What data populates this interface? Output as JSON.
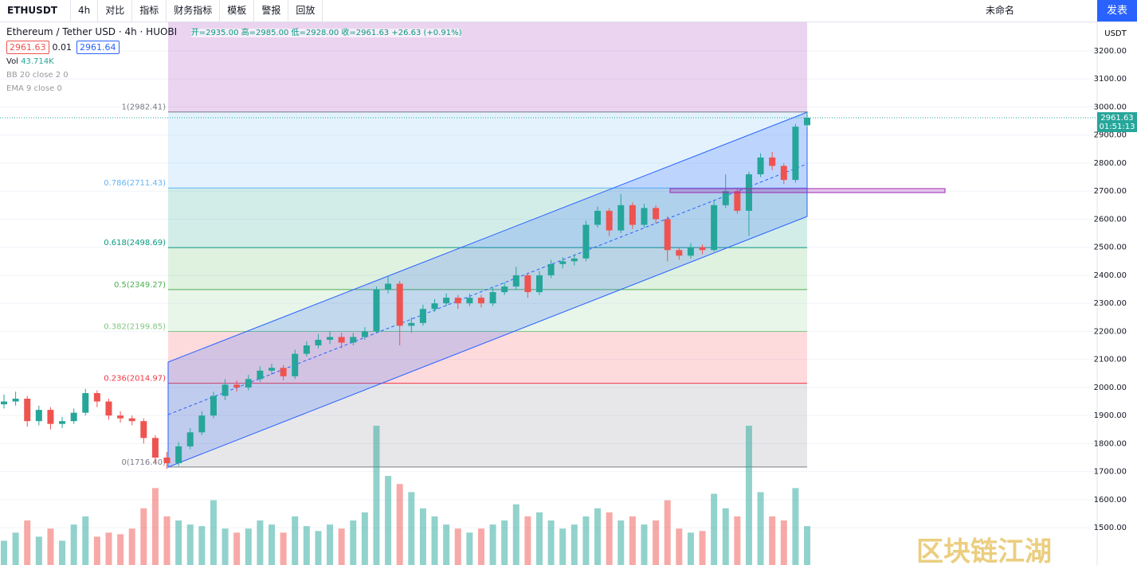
{
  "toolbar": {
    "symbol": "ETHUSDT",
    "interval": "4h",
    "items": [
      "对比",
      "指标",
      "财务指标",
      "模板",
      "警报",
      "回放"
    ],
    "layout_name": "未命名",
    "publish": "发表"
  },
  "legend": {
    "title": "Ethereum / Tether USD · 4h · HUOBI",
    "ohlc": "开=2935.00 高=2985.00 低=2928.00 收=2961.63 +26.63 (+0.91%)",
    "bid": "2961.63",
    "spread": "0.01",
    "ask": "2961.64",
    "vol_label": "Vol",
    "vol_value": "43.714K",
    "indicators": [
      "BB 20 close 2 0",
      "EMA 9 close 0"
    ]
  },
  "price_axis": {
    "currency": "USDT",
    "last_price": "2961.63",
    "countdown": "01:51:13"
  },
  "watermark": "区块链江湖",
  "chart_data": {
    "type": "candlestick",
    "ylim": [
      1367,
      3305
    ],
    "yticks": [
      {
        "value": 1500,
        "label": "1500.00"
      },
      {
        "value": 1600,
        "label": "1600.00"
      },
      {
        "value": 1700,
        "label": "1700.00"
      },
      {
        "value": 1800,
        "label": "1800.00"
      },
      {
        "value": 1900,
        "label": "1900.00"
      },
      {
        "value": 2000,
        "label": "2000.00"
      },
      {
        "value": 2100,
        "label": "2100.00"
      },
      {
        "value": 2200,
        "label": "2200.00"
      },
      {
        "value": 2300,
        "label": "2300.00"
      },
      {
        "value": 2400,
        "label": "2400.00"
      },
      {
        "value": 2500,
        "label": "2500.00"
      },
      {
        "value": 2600,
        "label": "2600.00"
      },
      {
        "value": 2700,
        "label": "2700.00"
      },
      {
        "value": 2800,
        "label": "2800.00"
      },
      {
        "value": 2900,
        "label": "2900.00"
      },
      {
        "value": 3000,
        "label": "3000.00"
      },
      {
        "value": 3100,
        "label": "3100.00"
      },
      {
        "value": 3200,
        "label": "3200.00"
      }
    ],
    "grid": true,
    "up_color": "#26a69a",
    "down_color": "#ef5350",
    "fib_levels": [
      {
        "value": 1716.4,
        "label": "0(1716.40)",
        "color": "#787b86"
      },
      {
        "value": 2014.97,
        "label": "0.236(2014.97)",
        "color": "#f23645"
      },
      {
        "value": 2199.85,
        "label": "0.382(2199.85)",
        "color": "#81c784"
      },
      {
        "value": 2349.27,
        "label": "0.5(2349.27)",
        "color": "#4caf50"
      },
      {
        "value": 2498.69,
        "label": "0.618(2498.69)",
        "color": "#089981"
      },
      {
        "value": 2711.43,
        "label": "0.786(2711.43)",
        "color": "#64b5f6"
      },
      {
        "value": 2982.41,
        "label": "1(2982.41)",
        "color": "#787b86"
      }
    ],
    "candles": [
      [
        1940,
        1975,
        1925,
        1950
      ],
      [
        1950,
        1985,
        1935,
        1960
      ],
      [
        1960,
        1970,
        1860,
        1880
      ],
      [
        1880,
        1935,
        1865,
        1920
      ],
      [
        1920,
        1930,
        1850,
        1870
      ],
      [
        1870,
        1895,
        1855,
        1880
      ],
      [
        1880,
        1925,
        1870,
        1910
      ],
      [
        1910,
        1995,
        1900,
        1980
      ],
      [
        1980,
        1990,
        1930,
        1950
      ],
      [
        1950,
        1960,
        1885,
        1900
      ],
      [
        1900,
        1915,
        1875,
        1890
      ],
      [
        1890,
        1900,
        1865,
        1880
      ],
      [
        1880,
        1890,
        1800,
        1820
      ],
      [
        1820,
        1830,
        1730,
        1750
      ],
      [
        1750,
        1770,
        1710,
        1730
      ],
      [
        1730,
        1805,
        1720,
        1790
      ],
      [
        1790,
        1855,
        1780,
        1840
      ],
      [
        1840,
        1915,
        1830,
        1900
      ],
      [
        1900,
        1985,
        1890,
        1970
      ],
      [
        1970,
        2030,
        1955,
        2010
      ],
      [
        2010,
        2025,
        1985,
        2000
      ],
      [
        2000,
        2045,
        1990,
        2030
      ],
      [
        2030,
        2075,
        2020,
        2060
      ],
      [
        2060,
        2085,
        2045,
        2070
      ],
      [
        2070,
        2080,
        2025,
        2040
      ],
      [
        2040,
        2135,
        2030,
        2120
      ],
      [
        2120,
        2165,
        2110,
        2150
      ],
      [
        2150,
        2190,
        2140,
        2170
      ],
      [
        2170,
        2200,
        2155,
        2180
      ],
      [
        2180,
        2195,
        2140,
        2160
      ],
      [
        2160,
        2195,
        2150,
        2180
      ],
      [
        2180,
        2215,
        2170,
        2200
      ],
      [
        2200,
        2360,
        2195,
        2350
      ],
      [
        2350,
        2395,
        2335,
        2370
      ],
      [
        2370,
        2380,
        2150,
        2220
      ],
      [
        2220,
        2250,
        2195,
        2230
      ],
      [
        2230,
        2295,
        2220,
        2280
      ],
      [
        2280,
        2315,
        2270,
        2300
      ],
      [
        2300,
        2335,
        2290,
        2320
      ],
      [
        2320,
        2330,
        2280,
        2300
      ],
      [
        2300,
        2335,
        2290,
        2320
      ],
      [
        2320,
        2330,
        2285,
        2300
      ],
      [
        2300,
        2355,
        2290,
        2340
      ],
      [
        2340,
        2375,
        2330,
        2360
      ],
      [
        2360,
        2430,
        2350,
        2400
      ],
      [
        2400,
        2410,
        2320,
        2340
      ],
      [
        2340,
        2415,
        2330,
        2400
      ],
      [
        2400,
        2455,
        2390,
        2440
      ],
      [
        2440,
        2465,
        2425,
        2450
      ],
      [
        2450,
        2475,
        2435,
        2460
      ],
      [
        2460,
        2595,
        2450,
        2580
      ],
      [
        2580,
        2645,
        2570,
        2630
      ],
      [
        2630,
        2640,
        2540,
        2560
      ],
      [
        2560,
        2690,
        2550,
        2650
      ],
      [
        2650,
        2660,
        2565,
        2580
      ],
      [
        2580,
        2655,
        2570,
        2640
      ],
      [
        2640,
        2650,
        2585,
        2600
      ],
      [
        2600,
        2610,
        2450,
        2490
      ],
      [
        2490,
        2500,
        2455,
        2470
      ],
      [
        2470,
        2515,
        2460,
        2500
      ],
      [
        2500,
        2510,
        2475,
        2490
      ],
      [
        2490,
        2665,
        2485,
        2650
      ],
      [
        2650,
        2760,
        2640,
        2700
      ],
      [
        2700,
        2710,
        2620,
        2630
      ],
      [
        2630,
        2770,
        2540,
        2760
      ],
      [
        2760,
        2835,
        2750,
        2820
      ],
      [
        2820,
        2840,
        2775,
        2790
      ],
      [
        2790,
        2800,
        2725,
        2740
      ],
      [
        2740,
        2940,
        2730,
        2930
      ],
      [
        2935,
        2985,
        2928,
        2961.63
      ]
    ],
    "volumes": [
      30,
      40,
      55,
      35,
      45,
      30,
      50,
      60,
      35,
      40,
      38,
      45,
      70,
      95,
      60,
      55,
      50,
      48,
      80,
      45,
      40,
      45,
      55,
      50,
      40,
      60,
      48,
      42,
      50,
      45,
      55,
      65,
      172,
      110,
      100,
      90,
      70,
      60,
      50,
      45,
      40,
      45,
      50,
      55,
      75,
      60,
      65,
      55,
      45,
      50,
      60,
      70,
      65,
      55,
      60,
      50,
      55,
      80,
      45,
      40,
      42,
      88,
      70,
      60,
      172,
      90,
      60,
      55,
      95,
      48
    ]
  }
}
